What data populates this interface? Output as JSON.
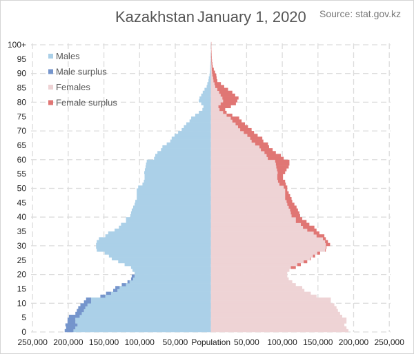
{
  "chart_data": {
    "type": "bar",
    "orientation": "horizontal-population-pyramid",
    "title": "Kazakhstan",
    "subtitle": "January 1, 2020",
    "source": "Source: stat.gov.kz",
    "xlabel": "Population",
    "xlim": [
      -250000,
      250000
    ],
    "x_tick_labels": [
      "250,000",
      "200,000",
      "150,000",
      "100,000",
      "50,000",
      "Population",
      "50,000",
      "100,000",
      "150,000",
      "200,000",
      "250,000"
    ],
    "y_tick_labels": [
      "0",
      "5",
      "10",
      "15",
      "20",
      "25",
      "30",
      "35",
      "40",
      "45",
      "50",
      "55",
      "60",
      "65",
      "70",
      "75",
      "80",
      "85",
      "90",
      "95",
      "100+"
    ],
    "grid": true,
    "legend_position": "top-left",
    "legend": [
      {
        "label": "Males",
        "color": "#abd0e8"
      },
      {
        "label": "Male surplus",
        "color": "#7595cc"
      },
      {
        "label": "Females",
        "color": "#eed3d5"
      },
      {
        "label": "Female surplus",
        "color": "#e07674"
      }
    ],
    "ages": "0-100+",
    "series": [
      {
        "name": "Males",
        "unit": "thousands",
        "values": [
          205,
          203,
          204,
          201,
          201,
          199,
          190,
          188,
          186,
          183,
          178,
          175,
          155,
          147,
          137,
          134,
          125,
          117,
          112,
          111,
          107,
          110,
          112,
          121,
          130,
          139,
          143,
          149,
          160,
          161,
          161,
          160,
          157,
          148,
          144,
          135,
          129,
          126,
          119,
          119,
          113,
          112,
          111,
          109,
          107,
          106,
          104,
          104,
          104,
          104,
          102,
          96,
          94,
          93,
          93,
          93.5,
          92.6,
          91.6,
          91,
          90,
          79.7,
          78,
          75,
          70,
          68,
          62,
          57,
          55,
          51,
          46,
          41,
          38,
          34.5,
          30,
          27.7,
          22,
          17,
          12,
          10.5,
          13.6,
          17,
          16,
          13.6,
          11.5,
          9,
          6,
          5,
          3.5,
          3,
          2,
          1.5,
          1.2,
          1,
          0.8,
          0.6,
          0.5,
          0.4,
          0.3,
          0.2,
          0.2,
          0.3
        ]
      },
      {
        "name": "Females",
        "unit": "thousands",
        "values": [
          192.7,
          190,
          187,
          190,
          190,
          184,
          181,
          178,
          176,
          173,
          168,
          168,
          148,
          140,
          131,
          128,
          119,
          114,
          109,
          107,
          107,
          110,
          119,
          126,
          135,
          140,
          146,
          153,
          161,
          162,
          167,
          164,
          161,
          159,
          152,
          148,
          145,
          138,
          134,
          128,
          125,
          124,
          122,
          120,
          117,
          114,
          113,
          111,
          109,
          107,
          107,
          105,
          104,
          101,
          101,
          104,
          106,
          109,
          110,
          110,
          102,
          98,
          91,
          86.5,
          81.5,
          80,
          73.5,
          72,
          65.5,
          60.5,
          57,
          52,
          47.7,
          43,
          39.6,
          30,
          22,
          20,
          28,
          35,
          37,
          38.7,
          34,
          30,
          24,
          18.6,
          14,
          9,
          8,
          7.5,
          5.8,
          4,
          2.5,
          2,
          1.5,
          1.2,
          1,
          0.8,
          0.6,
          0.5,
          0.6
        ]
      }
    ]
  }
}
